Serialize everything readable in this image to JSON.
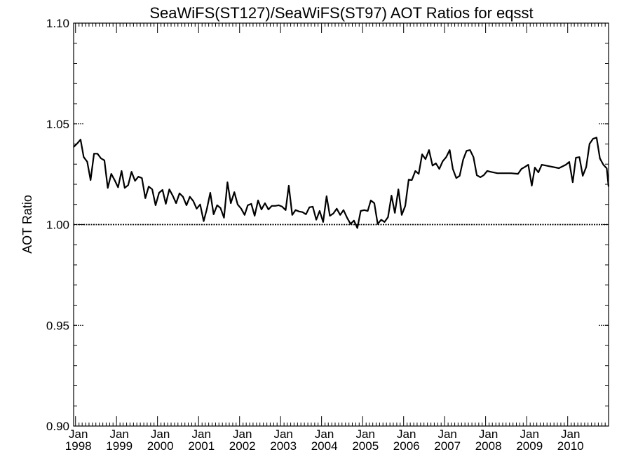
{
  "chart_data": {
    "type": "line",
    "title": "SeaWiFS(ST127)/SeaWiFS(ST97)  AOT Ratios for eqsst",
    "ylabel": "AOT Ratio",
    "xlabel": "",
    "ylim": [
      0.9,
      1.1
    ],
    "xlim": [
      "1997-12-15",
      "2010-12-31"
    ],
    "y_ticks": [
      {
        "value": 0.9,
        "label": "0.90"
      },
      {
        "value": 0.95,
        "label": "0.95"
      },
      {
        "value": 1.0,
        "label": "1.00"
      },
      {
        "value": 1.05,
        "label": "1.05"
      },
      {
        "value": 1.1,
        "label": "1.10"
      }
    ],
    "x_ticks": [
      {
        "date": "1998-01-01",
        "month": "Jan",
        "year": "1998"
      },
      {
        "date": "1999-01-01",
        "month": "Jan",
        "year": "1999"
      },
      {
        "date": "2000-01-01",
        "month": "Jan",
        "year": "2000"
      },
      {
        "date": "2001-01-01",
        "month": "Jan",
        "year": "2001"
      },
      {
        "date": "2002-01-01",
        "month": "Jan",
        "year": "2002"
      },
      {
        "date": "2003-01-01",
        "month": "Jan",
        "year": "2003"
      },
      {
        "date": "2004-01-01",
        "month": "Jan",
        "year": "2004"
      },
      {
        "date": "2005-01-01",
        "month": "Jan",
        "year": "2005"
      },
      {
        "date": "2006-01-01",
        "month": "Jan",
        "year": "2006"
      },
      {
        "date": "2007-01-01",
        "month": "Jan",
        "year": "2007"
      },
      {
        "date": "2008-01-01",
        "month": "Jan",
        "year": "2008"
      },
      {
        "date": "2009-01-01",
        "month": "Jan",
        "year": "2009"
      },
      {
        "date": "2010-01-01",
        "month": "Jan",
        "year": "2010"
      }
    ],
    "reference_line": 1.0,
    "series": [
      {
        "color": "#000000",
        "points": [
          [
            "1997-12-15",
            1.0385
          ],
          [
            "1998-01-15",
            1.0402
          ],
          [
            "1998-02-15",
            1.0422
          ],
          [
            "1998-03-15",
            1.0335
          ],
          [
            "1998-04-15",
            1.0312
          ],
          [
            "1998-05-15",
            1.0221
          ],
          [
            "1998-06-15",
            1.0352
          ],
          [
            "1998-07-15",
            1.0352
          ],
          [
            "1998-08-15",
            1.0329
          ],
          [
            "1998-09-15",
            1.0319
          ],
          [
            "1998-10-15",
            1.0182
          ],
          [
            "1998-11-15",
            1.0252
          ],
          [
            "1998-12-15",
            1.0221
          ],
          [
            "1999-01-15",
            1.0185
          ],
          [
            "1999-02-15",
            1.0266
          ],
          [
            "1999-03-15",
            1.0182
          ],
          [
            "1999-04-15",
            1.0196
          ],
          [
            "1999-05-15",
            1.0262
          ],
          [
            "1999-06-15",
            1.0217
          ],
          [
            "1999-07-15",
            1.0238
          ],
          [
            "1999-08-15",
            1.0231
          ],
          [
            "1999-09-15",
            1.0131
          ],
          [
            "1999-10-15",
            1.0189
          ],
          [
            "1999-11-15",
            1.0175
          ],
          [
            "1999-12-15",
            1.0096
          ],
          [
            "2000-01-15",
            1.0158
          ],
          [
            "2000-02-15",
            1.0172
          ],
          [
            "2000-03-15",
            1.0103
          ],
          [
            "2000-04-15",
            1.0175
          ],
          [
            "2000-05-15",
            1.0144
          ],
          [
            "2000-06-15",
            1.0106
          ],
          [
            "2000-07-15",
            1.0155
          ],
          [
            "2000-08-15",
            1.0138
          ],
          [
            "2000-09-15",
            1.0096
          ],
          [
            "2000-10-15",
            1.0138
          ],
          [
            "2000-11-15",
            1.0117
          ],
          [
            "2000-12-15",
            1.0079
          ],
          [
            "2001-01-15",
            1.01
          ],
          [
            "2001-02-15",
            1.0017
          ],
          [
            "2001-03-15",
            1.0075
          ],
          [
            "2001-04-15",
            1.0158
          ],
          [
            "2001-05-15",
            1.0051
          ],
          [
            "2001-06-15",
            1.0096
          ],
          [
            "2001-07-15",
            1.0082
          ],
          [
            "2001-08-15",
            1.0034
          ],
          [
            "2001-09-15",
            1.021
          ],
          [
            "2001-10-15",
            1.0106
          ],
          [
            "2001-11-15",
            1.0161
          ],
          [
            "2001-12-15",
            1.01
          ],
          [
            "2002-01-15",
            1.0079
          ],
          [
            "2002-02-15",
            1.0048
          ],
          [
            "2002-03-15",
            1.0096
          ],
          [
            "2002-04-15",
            1.0103
          ],
          [
            "2002-05-15",
            1.0044
          ],
          [
            "2002-06-15",
            1.012
          ],
          [
            "2002-07-15",
            1.0075
          ],
          [
            "2002-08-15",
            1.0106
          ],
          [
            "2002-09-15",
            1.0075
          ],
          [
            "2002-10-15",
            1.0093
          ],
          [
            "2002-11-15",
            1.0093
          ],
          [
            "2002-12-15",
            1.0096
          ],
          [
            "2003-01-15",
            1.0089
          ],
          [
            "2003-02-15",
            1.0072
          ],
          [
            "2003-03-15",
            1.0193
          ],
          [
            "2003-04-15",
            1.0048
          ],
          [
            "2003-05-15",
            1.0072
          ],
          [
            "2003-06-15",
            1.0065
          ],
          [
            "2003-07-15",
            1.0062
          ],
          [
            "2003-08-15",
            1.0051
          ],
          [
            "2003-09-15",
            1.0086
          ],
          [
            "2003-10-15",
            1.0089
          ],
          [
            "2003-11-15",
            1.0024
          ],
          [
            "2003-12-15",
            1.0068
          ],
          [
            "2004-01-15",
            1.0013
          ],
          [
            "2004-02-15",
            1.0141
          ],
          [
            "2004-03-15",
            1.0044
          ],
          [
            "2004-04-15",
            1.0055
          ],
          [
            "2004-05-15",
            1.0079
          ],
          [
            "2004-06-15",
            1.0048
          ],
          [
            "2004-07-15",
            1.0072
          ],
          [
            "2004-08-15",
            1.0034
          ],
          [
            "2004-09-15",
            1.0003
          ],
          [
            "2004-10-15",
            1.002
          ],
          [
            "2004-11-15",
            0.9983
          ],
          [
            "2004-12-15",
            1.0068
          ],
          [
            "2005-01-15",
            1.0072
          ],
          [
            "2005-02-15",
            1.0068
          ],
          [
            "2005-03-15",
            1.012
          ],
          [
            "2005-04-15",
            1.0106
          ],
          [
            "2005-05-15",
            1.0003
          ],
          [
            "2005-06-15",
            1.0024
          ],
          [
            "2005-07-15",
            1.0013
          ],
          [
            "2005-08-15",
            1.0037
          ],
          [
            "2005-09-15",
            1.0144
          ],
          [
            "2005-10-15",
            1.0058
          ],
          [
            "2005-11-15",
            1.0175
          ],
          [
            "2005-12-15",
            1.0048
          ],
          [
            "2006-01-15",
            1.0093
          ],
          [
            "2006-02-15",
            1.0223
          ],
          [
            "2006-03-15",
            1.0221
          ],
          [
            "2006-04-15",
            1.0266
          ],
          [
            "2006-05-15",
            1.0252
          ],
          [
            "2006-06-15",
            1.0349
          ],
          [
            "2006-07-15",
            1.0325
          ],
          [
            "2006-08-15",
            1.037
          ],
          [
            "2006-09-15",
            1.0293
          ],
          [
            "2006-10-15",
            1.0304
          ],
          [
            "2006-11-15",
            1.0276
          ],
          [
            "2006-12-15",
            1.0314
          ],
          [
            "2007-01-15",
            1.0335
          ],
          [
            "2007-02-15",
            1.037
          ],
          [
            "2007-03-15",
            1.0276
          ],
          [
            "2007-04-15",
            1.0231
          ],
          [
            "2007-05-15",
            1.0242
          ],
          [
            "2007-06-15",
            1.0322
          ],
          [
            "2007-07-15",
            1.0366
          ],
          [
            "2007-08-15",
            1.037
          ],
          [
            "2007-09-15",
            1.0335
          ],
          [
            "2007-10-15",
            1.0245
          ],
          [
            "2007-11-15",
            1.0235
          ],
          [
            "2007-12-15",
            1.0245
          ],
          [
            "2008-01-15",
            1.0266
          ],
          [
            "2008-02-15",
            1.0262
          ],
          [
            "2008-04-15",
            1.0255
          ],
          [
            "2008-06-15",
            1.0255
          ],
          [
            "2008-08-15",
            1.0255
          ],
          [
            "2008-10-15",
            1.0252
          ],
          [
            "2008-11-15",
            1.0276
          ],
          [
            "2008-12-15",
            1.0286
          ],
          [
            "2009-01-15",
            1.0297
          ],
          [
            "2009-02-15",
            1.0193
          ],
          [
            "2009-03-15",
            1.0283
          ],
          [
            "2009-04-15",
            1.0259
          ],
          [
            "2009-05-15",
            1.0297
          ],
          [
            "2009-07-15",
            1.029
          ],
          [
            "2009-10-15",
            1.028
          ],
          [
            "2009-12-15",
            1.0297
          ],
          [
            "2010-01-15",
            1.0311
          ],
          [
            "2010-02-15",
            1.021
          ],
          [
            "2010-03-15",
            1.0332
          ],
          [
            "2010-04-15",
            1.0335
          ],
          [
            "2010-05-15",
            1.0242
          ],
          [
            "2010-06-15",
            1.0286
          ],
          [
            "2010-07-15",
            1.0401
          ],
          [
            "2010-08-15",
            1.0426
          ],
          [
            "2010-09-15",
            1.0432
          ],
          [
            "2010-10-15",
            1.0328
          ],
          [
            "2010-11-15",
            1.0297
          ],
          [
            "2010-12-15",
            1.0279
          ],
          [
            "2010-12-31",
            1.0189
          ]
        ]
      }
    ],
    "grid": false,
    "legend": "none"
  }
}
